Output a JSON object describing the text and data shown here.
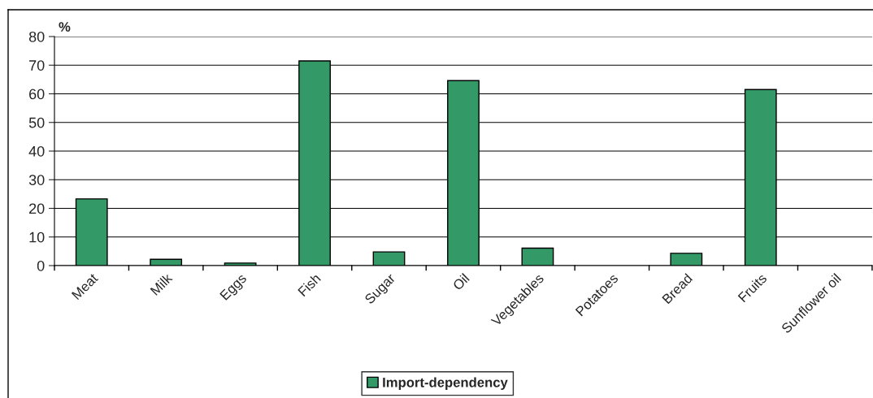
{
  "chart_data": {
    "type": "bar",
    "ylabel": "%",
    "categories": [
      "Meat",
      "Milk",
      "Eggs",
      "Fish",
      "Sugar",
      "Oil",
      "Vegetables",
      "Potatoes",
      "Bread",
      "Fruits",
      "Sunflower oil"
    ],
    "series": [
      {
        "name": "Import-dependency",
        "color": "#339966",
        "values": [
          23.3,
          2.2,
          0.9,
          71.5,
          4.8,
          64.6,
          6.1,
          0,
          4.3,
          61.5,
          0
        ]
      }
    ],
    "ylim": [
      0,
      80
    ],
    "yticks": [
      0,
      10,
      20,
      30,
      40,
      50,
      60,
      70,
      80
    ],
    "grid": "y",
    "legend": "bottom"
  }
}
